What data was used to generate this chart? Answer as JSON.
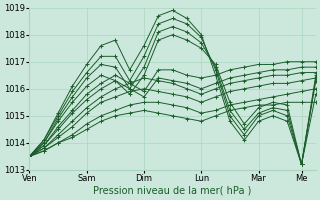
{
  "title": "",
  "xlabel": "Pression niveau de la mer( hPa )",
  "ylabel": "",
  "bg_color": "#cce8dc",
  "plot_bg": "#cce8dc",
  "grid_color": "#aad4c0",
  "line_color": "#1a5c2a",
  "marker": "+",
  "ylim": [
    1013,
    1019
  ],
  "yticks": [
    1013,
    1014,
    1015,
    1016,
    1017,
    1018,
    1019
  ],
  "day_labels": [
    "Ven",
    "Sam",
    "Dim",
    "Lun",
    "Mar",
    "Me"
  ],
  "day_x": [
    0,
    24,
    48,
    72,
    96,
    114
  ],
  "xlim": [
    0,
    120
  ],
  "series": [
    {
      "pts": [
        [
          0,
          1013.5
        ],
        [
          6,
          1013.7
        ],
        [
          12,
          1014.0
        ],
        [
          18,
          1014.2
        ],
        [
          24,
          1014.5
        ],
        [
          30,
          1014.8
        ],
        [
          36,
          1015.0
        ],
        [
          42,
          1015.1
        ],
        [
          48,
          1015.2
        ],
        [
          54,
          1015.1
        ],
        [
          60,
          1015.0
        ],
        [
          66,
          1014.9
        ],
        [
          72,
          1014.8
        ],
        [
          78,
          1015.0
        ],
        [
          84,
          1015.2
        ],
        [
          90,
          1015.3
        ],
        [
          96,
          1015.4
        ],
        [
          102,
          1015.4
        ],
        [
          108,
          1015.5
        ],
        [
          114,
          1015.5
        ],
        [
          120,
          1015.5
        ]
      ]
    },
    {
      "pts": [
        [
          0,
          1013.5
        ],
        [
          6,
          1013.7
        ],
        [
          12,
          1014.0
        ],
        [
          18,
          1014.3
        ],
        [
          24,
          1014.7
        ],
        [
          30,
          1015.0
        ],
        [
          36,
          1015.2
        ],
        [
          42,
          1015.4
        ],
        [
          48,
          1015.5
        ],
        [
          54,
          1015.5
        ],
        [
          60,
          1015.4
        ],
        [
          66,
          1015.3
        ],
        [
          72,
          1015.1
        ],
        [
          78,
          1015.2
        ],
        [
          84,
          1015.4
        ],
        [
          90,
          1015.5
        ],
        [
          96,
          1015.6
        ],
        [
          102,
          1015.7
        ],
        [
          108,
          1015.8
        ],
        [
          114,
          1015.9
        ],
        [
          120,
          1016.0
        ]
      ]
    },
    {
      "pts": [
        [
          0,
          1013.5
        ],
        [
          6,
          1013.8
        ],
        [
          12,
          1014.2
        ],
        [
          18,
          1014.6
        ],
        [
          24,
          1015.1
        ],
        [
          30,
          1015.5
        ],
        [
          36,
          1015.7
        ],
        [
          42,
          1015.9
        ],
        [
          48,
          1016.0
        ],
        [
          54,
          1015.9
        ],
        [
          60,
          1015.8
        ],
        [
          66,
          1015.7
        ],
        [
          72,
          1015.5
        ],
        [
          78,
          1015.7
        ],
        [
          84,
          1015.9
        ],
        [
          90,
          1016.0
        ],
        [
          96,
          1016.1
        ],
        [
          102,
          1016.2
        ],
        [
          108,
          1016.2
        ],
        [
          114,
          1016.3
        ],
        [
          120,
          1016.4
        ]
      ]
    },
    {
      "pts": [
        [
          0,
          1013.5
        ],
        [
          6,
          1013.8
        ],
        [
          12,
          1014.3
        ],
        [
          18,
          1014.8
        ],
        [
          24,
          1015.3
        ],
        [
          30,
          1015.7
        ],
        [
          36,
          1016.0
        ],
        [
          42,
          1016.2
        ],
        [
          48,
          1016.4
        ],
        [
          54,
          1016.3
        ],
        [
          60,
          1016.2
        ],
        [
          66,
          1016.0
        ],
        [
          72,
          1015.8
        ],
        [
          78,
          1016.0
        ],
        [
          84,
          1016.2
        ],
        [
          90,
          1016.3
        ],
        [
          96,
          1016.4
        ],
        [
          102,
          1016.5
        ],
        [
          108,
          1016.5
        ],
        [
          114,
          1016.6
        ],
        [
          120,
          1016.6
        ]
      ]
    },
    {
      "pts": [
        [
          0,
          1013.5
        ],
        [
          6,
          1013.9
        ],
        [
          12,
          1014.5
        ],
        [
          18,
          1015.1
        ],
        [
          24,
          1015.6
        ],
        [
          30,
          1016.0
        ],
        [
          36,
          1016.3
        ],
        [
          42,
          1016.0
        ],
        [
          48,
          1015.7
        ],
        [
          54,
          1016.4
        ],
        [
          60,
          1016.3
        ],
        [
          66,
          1016.2
        ],
        [
          72,
          1016.0
        ],
        [
          78,
          1016.2
        ],
        [
          84,
          1016.4
        ],
        [
          90,
          1016.5
        ],
        [
          96,
          1016.6
        ],
        [
          102,
          1016.7
        ],
        [
          108,
          1016.7
        ],
        [
          114,
          1016.8
        ],
        [
          120,
          1016.8
        ]
      ]
    },
    {
      "pts": [
        [
          0,
          1013.5
        ],
        [
          6,
          1013.9
        ],
        [
          12,
          1014.6
        ],
        [
          18,
          1015.2
        ],
        [
          24,
          1015.8
        ],
        [
          30,
          1016.2
        ],
        [
          36,
          1016.5
        ],
        [
          42,
          1016.2
        ],
        [
          48,
          1015.9
        ],
        [
          54,
          1016.7
        ],
        [
          60,
          1016.7
        ],
        [
          66,
          1016.5
        ],
        [
          72,
          1016.4
        ],
        [
          78,
          1016.5
        ],
        [
          84,
          1016.7
        ],
        [
          90,
          1016.8
        ],
        [
          96,
          1016.9
        ],
        [
          102,
          1016.9
        ],
        [
          108,
          1017.0
        ],
        [
          114,
          1017.0
        ],
        [
          120,
          1017.0
        ]
      ]
    },
    {
      "pts": [
        [
          0,
          1013.5
        ],
        [
          6,
          1014.0
        ],
        [
          12,
          1014.8
        ],
        [
          18,
          1015.5
        ],
        [
          24,
          1016.1
        ],
        [
          30,
          1016.5
        ],
        [
          36,
          1016.3
        ],
        [
          42,
          1015.8
        ],
        [
          48,
          1016.5
        ],
        [
          54,
          1017.8
        ],
        [
          60,
          1018.0
        ],
        [
          66,
          1017.8
        ],
        [
          72,
          1017.5
        ],
        [
          78,
          1016.9
        ],
        [
          84,
          1015.5
        ],
        [
          90,
          1014.7
        ],
        [
          96,
          1015.3
        ],
        [
          102,
          1015.5
        ],
        [
          108,
          1015.4
        ],
        [
          114,
          1013.2
        ],
        [
          120,
          1015.8
        ]
      ]
    },
    {
      "pts": [
        [
          0,
          1013.5
        ],
        [
          6,
          1014.0
        ],
        [
          12,
          1014.9
        ],
        [
          18,
          1015.7
        ],
        [
          24,
          1016.4
        ],
        [
          30,
          1016.9
        ],
        [
          36,
          1016.8
        ],
        [
          42,
          1016.0
        ],
        [
          48,
          1016.8
        ],
        [
          54,
          1018.1
        ],
        [
          60,
          1018.3
        ],
        [
          66,
          1018.1
        ],
        [
          72,
          1017.7
        ],
        [
          78,
          1016.8
        ],
        [
          84,
          1015.2
        ],
        [
          90,
          1014.5
        ],
        [
          96,
          1015.1
        ],
        [
          102,
          1015.3
        ],
        [
          108,
          1015.2
        ],
        [
          114,
          1013.2
        ],
        [
          120,
          1016.4
        ]
      ]
    },
    {
      "pts": [
        [
          0,
          1013.5
        ],
        [
          6,
          1014.1
        ],
        [
          12,
          1015.0
        ],
        [
          18,
          1015.9
        ],
        [
          24,
          1016.6
        ],
        [
          30,
          1017.2
        ],
        [
          36,
          1017.2
        ],
        [
          42,
          1016.3
        ],
        [
          48,
          1017.2
        ],
        [
          54,
          1018.4
        ],
        [
          60,
          1018.6
        ],
        [
          66,
          1018.4
        ],
        [
          72,
          1017.9
        ],
        [
          78,
          1016.7
        ],
        [
          84,
          1015.0
        ],
        [
          90,
          1014.3
        ],
        [
          96,
          1015.0
        ],
        [
          102,
          1015.2
        ],
        [
          108,
          1015.0
        ],
        [
          114,
          1013.2
        ],
        [
          120,
          1016.5
        ]
      ]
    },
    {
      "pts": [
        [
          0,
          1013.5
        ],
        [
          6,
          1014.1
        ],
        [
          12,
          1015.1
        ],
        [
          18,
          1016.1
        ],
        [
          24,
          1016.9
        ],
        [
          30,
          1017.6
        ],
        [
          36,
          1017.8
        ],
        [
          42,
          1016.7
        ],
        [
          48,
          1017.6
        ],
        [
          54,
          1018.7
        ],
        [
          60,
          1018.9
        ],
        [
          66,
          1018.6
        ],
        [
          72,
          1018.0
        ],
        [
          78,
          1016.5
        ],
        [
          84,
          1014.8
        ],
        [
          90,
          1014.1
        ],
        [
          96,
          1014.8
        ],
        [
          102,
          1015.0
        ],
        [
          108,
          1014.8
        ],
        [
          114,
          1013.2
        ],
        [
          120,
          1016.3
        ]
      ]
    }
  ]
}
